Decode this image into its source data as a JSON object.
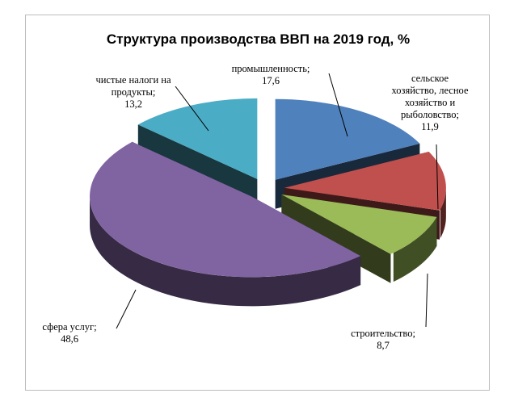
{
  "chart_data": {
    "type": "pie",
    "title": "Структура производства ВВП на 2019 год, %",
    "unit": "%",
    "three_d": true,
    "slices": [
      {
        "label_lines": [
          "промышленность;"
        ],
        "value_text": "17,6",
        "value": 17.6,
        "color": "#4f81bd"
      },
      {
        "label_lines": [
          "сельское",
          "хозяйство, лесное",
          "хозяйство и",
          "рыболовство;"
        ],
        "value_text": "11,9",
        "value": 11.9,
        "color": "#c0504d"
      },
      {
        "label_lines": [
          "строительство;"
        ],
        "value_text": "8,7",
        "value": 8.7,
        "color": "#9bbb59"
      },
      {
        "label_lines": [
          "сфера услуг;"
        ],
        "value_text": "48,6",
        "value": 48.6,
        "color": "#8064a2"
      },
      {
        "label_lines": [
          "чистые налоги на",
          "продукты;"
        ],
        "value_text": "13,2",
        "value": 13.2,
        "color": "#4bacc6"
      }
    ]
  }
}
